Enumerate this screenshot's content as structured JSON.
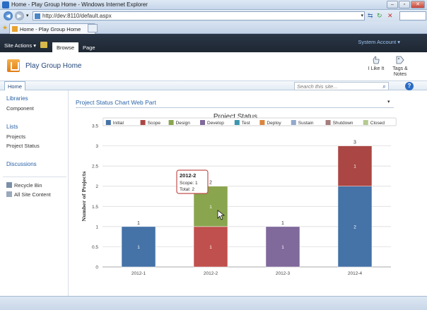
{
  "browser": {
    "title": "Home - Play Group Home - Windows Internet Explorer",
    "address_url": "http://dev:8110/default.aspx",
    "tab_label": "Home - Play Group Home"
  },
  "ribbon": {
    "site_actions": "Site Actions ▾",
    "tabs": [
      {
        "label": "Browse",
        "active": true
      },
      {
        "label": "Page",
        "active": false
      }
    ],
    "account": "System Account ▾"
  },
  "site": {
    "title": "Play Group Home",
    "social": [
      {
        "label": "I Like It",
        "icon": "thumbs-up-icon"
      },
      {
        "label": "Tags &",
        "label2": "Notes",
        "icon": "tag-icon"
      }
    ]
  },
  "topnav": {
    "home": "Home",
    "search_placeholder": "Search this site..."
  },
  "quicklaunch": {
    "libraries_heading": "Libraries",
    "libraries": [
      "Component"
    ],
    "lists_heading": "Lists",
    "lists": [
      "Projects",
      "Project Status"
    ],
    "discussions_heading": "Discussions",
    "recycle_bin": "Recycle Bin",
    "all_site_content": "All Site Content"
  },
  "webpart": {
    "title": "Project Status Chart Web Part",
    "menu_icon": "▾"
  },
  "chart_data": {
    "type": "bar",
    "stacked": true,
    "title": "Project Status",
    "ylabel": "Number of Projects",
    "xlabel": "",
    "ylim": [
      0,
      3.5
    ],
    "yticks": [
      "0",
      "0.5",
      "1",
      "1.5",
      "2",
      "2.5",
      "3",
      "3.5"
    ],
    "grid": true,
    "legend_position": "top",
    "categories": [
      "2012-1",
      "2012-2",
      "2012-3",
      "2012-4"
    ],
    "totals": [
      "1",
      "2",
      "1",
      "3"
    ],
    "series": [
      {
        "name": "Initial",
        "color": "#4572a7",
        "values": [
          1,
          0,
          0,
          2
        ],
        "labels": [
          "1",
          "0",
          "0",
          "2"
        ]
      },
      {
        "name": "Scope",
        "color": "#aa4643",
        "values": [
          0,
          1,
          0,
          1
        ],
        "labels": [
          "",
          "1",
          "",
          "1"
        ]
      },
      {
        "name": "Design",
        "color": "#89a54e",
        "values": [
          0,
          1,
          0,
          0
        ],
        "labels": [
          "",
          "1",
          "",
          ""
        ]
      },
      {
        "name": "Develop",
        "color": "#80699b",
        "values": [
          0,
          0,
          1,
          0
        ],
        "labels": [
          "",
          "",
          "1",
          ""
        ]
      },
      {
        "name": "Test",
        "color": "#3d96ae",
        "values": [
          0,
          0,
          0,
          0
        ],
        "labels": [
          "",
          "",
          "",
          ""
        ]
      },
      {
        "name": "Deploy",
        "color": "#db843d",
        "values": [
          0,
          0,
          0,
          0
        ],
        "labels": [
          "",
          "",
          "",
          ""
        ]
      },
      {
        "name": "Sustain",
        "color": "#92a8cd",
        "values": [
          0,
          0,
          0,
          0
        ],
        "labels": [
          "",
          "",
          "",
          ""
        ]
      },
      {
        "name": "Shutdown",
        "color": "#a47d7c",
        "values": [
          0,
          0,
          0,
          0
        ],
        "labels": [
          "",
          "",
          "",
          ""
        ]
      },
      {
        "name": "Closed",
        "color": "#b5ca92",
        "values": [
          0,
          0,
          0,
          0
        ],
        "labels": [
          "",
          "",
          "",
          ""
        ]
      }
    ],
    "tooltip": {
      "title": "2012-2",
      "line1": "Scope: 1",
      "line2": "Total: 2",
      "category_index": 1,
      "series_index": 1,
      "highlight_color": "#c0504d"
    }
  }
}
